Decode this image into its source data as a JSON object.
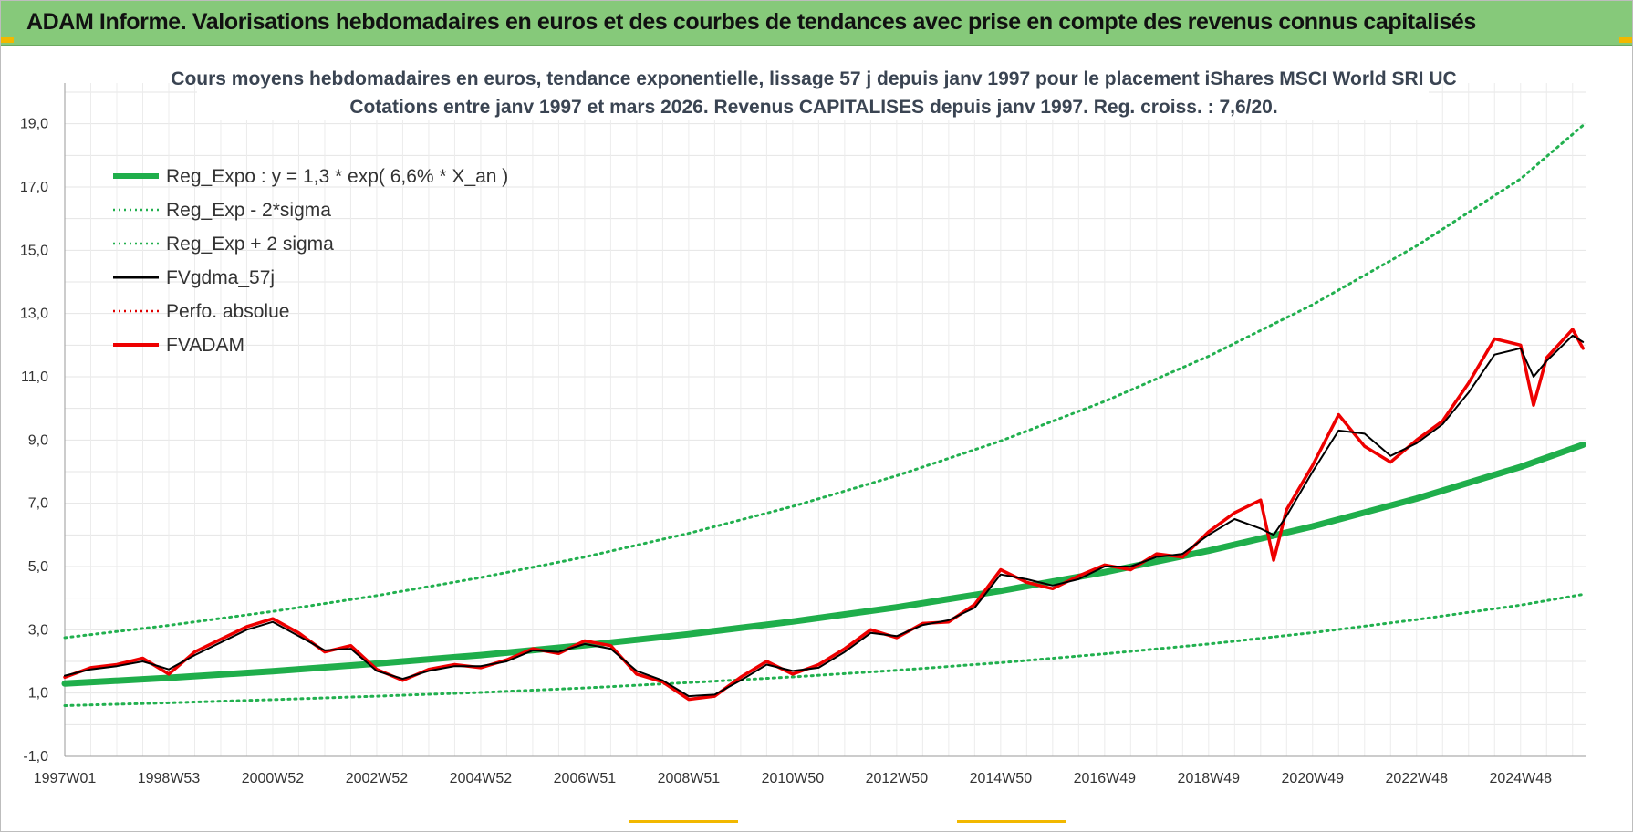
{
  "header": {
    "title": "ADAM Informe. Valorisations hebdomadaires en euros et des courbes de tendances avec prise en compte des revenus connus capitalisés"
  },
  "colors": {
    "banner": "#86c97a",
    "reg_expo": "#1fae4b",
    "sigma_lines": "#22b04f",
    "fvgdma": "#000000",
    "perfo": "#e00000",
    "fvadam": "#ee0000"
  },
  "chart_data": {
    "type": "line",
    "title": "Cours moyens hebdomadaires en euros, tendance exponentielle, lissage 57 j depuis janv 1997 pour le placement iShares MSCI World SRI UC",
    "subtitle": "Cotations entre janv 1997 et mars 2026. Revenus CAPITALISES depuis janv 1997. Reg. croiss. : 7,6/20.",
    "xlabel": "",
    "ylabel": "",
    "x_range": [
      1997.0,
      2026.25
    ],
    "ylim": [
      -1,
      20
    ],
    "y_ticks": [
      "-1,0",
      "1,0",
      "3,0",
      "5,0",
      "7,0",
      "9,0",
      "11,0",
      "13,0",
      "15,0",
      "17,0",
      "19,0"
    ],
    "y_tick_values": [
      -1,
      1,
      3,
      5,
      7,
      9,
      11,
      13,
      15,
      17,
      19
    ],
    "x_ticks": [
      {
        "label": "1997W01",
        "x": 1997.0
      },
      {
        "label": "1998W53",
        "x": 1999.0
      },
      {
        "label": "2000W52",
        "x": 2001.0
      },
      {
        "label": "2002W52",
        "x": 2003.0
      },
      {
        "label": "2004W52",
        "x": 2005.0
      },
      {
        "label": "2006W51",
        "x": 2007.0
      },
      {
        "label": "2008W51",
        "x": 2009.0
      },
      {
        "label": "2010W50",
        "x": 2011.0
      },
      {
        "label": "2012W50",
        "x": 2013.0
      },
      {
        "label": "2014W50",
        "x": 2015.0
      },
      {
        "label": "2016W49",
        "x": 2017.0
      },
      {
        "label": "2018W49",
        "x": 2019.0
      },
      {
        "label": "2020W49",
        "x": 2021.0
      },
      {
        "label": "2022W48",
        "x": 2023.0
      },
      {
        "label": "2024W48",
        "x": 2025.0
      }
    ],
    "grid": true,
    "legend_position": "top-left",
    "series": [
      {
        "name": "Reg_Expo : y = 1,3 * exp( 6,6% *  X_an )",
        "style": "solid-thick",
        "color": "#1fae4b",
        "x": [
          1997.0,
          1999.0,
          2001.0,
          2003.0,
          2005.0,
          2007.0,
          2009.0,
          2011.0,
          2013.0,
          2015.0,
          2017.0,
          2019.0,
          2021.0,
          2023.0,
          2025.0,
          2026.2
        ],
        "y": [
          1.3,
          1.48,
          1.69,
          1.93,
          2.2,
          2.51,
          2.86,
          3.26,
          3.71,
          4.23,
          4.82,
          5.5,
          6.27,
          7.15,
          8.15,
          8.85
        ]
      },
      {
        "name": "Reg_Exp - 2*sigma",
        "style": "dotted",
        "color": "#22b04f",
        "x": [
          1997.0,
          1999.0,
          2001.0,
          2003.0,
          2005.0,
          2007.0,
          2009.0,
          2011.0,
          2013.0,
          2015.0,
          2017.0,
          2019.0,
          2021.0,
          2023.0,
          2025.0,
          2026.2
        ],
        "y": [
          0.6,
          0.69,
          0.79,
          0.9,
          1.02,
          1.16,
          1.33,
          1.51,
          1.72,
          1.96,
          2.24,
          2.55,
          2.91,
          3.32,
          3.78,
          4.12
        ]
      },
      {
        "name": "Reg_Exp + 2 sigma",
        "style": "dotted",
        "color": "#22b04f",
        "x": [
          1997.0,
          1999.0,
          2001.0,
          2003.0,
          2005.0,
          2007.0,
          2009.0,
          2011.0,
          2013.0,
          2015.0,
          2017.0,
          2019.0,
          2021.0,
          2023.0,
          2025.0,
          2026.2
        ],
        "y": [
          2.75,
          3.14,
          3.58,
          4.08,
          4.65,
          5.3,
          6.05,
          6.9,
          7.87,
          8.97,
          10.22,
          11.65,
          13.28,
          15.14,
          17.26,
          18.95
        ]
      },
      {
        "name": "FVgdma_57j",
        "style": "solid-thin",
        "color": "#000000",
        "x": [
          1997.0,
          1997.5,
          1998.0,
          1998.5,
          1999.0,
          1999.5,
          2000.0,
          2000.5,
          2001.0,
          2001.5,
          2002.0,
          2002.5,
          2003.0,
          2003.5,
          2004.0,
          2004.5,
          2005.0,
          2005.5,
          2006.0,
          2006.5,
          2007.0,
          2007.5,
          2008.0,
          2008.5,
          2009.0,
          2009.5,
          2010.0,
          2010.5,
          2011.0,
          2011.5,
          2012.0,
          2012.5,
          2013.0,
          2013.5,
          2014.0,
          2014.5,
          2015.0,
          2015.5,
          2016.0,
          2016.5,
          2017.0,
          2017.5,
          2018.0,
          2018.5,
          2019.0,
          2019.5,
          2020.0,
          2020.25,
          2020.5,
          2021.0,
          2021.5,
          2022.0,
          2022.5,
          2023.0,
          2023.5,
          2024.0,
          2024.5,
          2025.0,
          2025.25,
          2025.5,
          2026.0,
          2026.2
        ],
        "y": [
          1.55,
          1.75,
          1.85,
          2.0,
          1.75,
          2.2,
          2.6,
          3.0,
          3.25,
          2.8,
          2.35,
          2.4,
          1.7,
          1.45,
          1.7,
          1.85,
          1.85,
          2.0,
          2.35,
          2.3,
          2.55,
          2.4,
          1.7,
          1.4,
          0.9,
          0.95,
          1.4,
          1.9,
          1.7,
          1.8,
          2.3,
          2.9,
          2.8,
          3.15,
          3.3,
          3.7,
          4.75,
          4.6,
          4.4,
          4.6,
          5.0,
          5.0,
          5.3,
          5.4,
          6.0,
          6.5,
          6.2,
          6.0,
          6.6,
          8.0,
          9.3,
          9.2,
          8.5,
          8.9,
          9.5,
          10.5,
          11.7,
          11.9,
          11.0,
          11.5,
          12.3,
          12.1
        ]
      },
      {
        "name": "Perfo. absolue",
        "style": "dotted",
        "color": "#e00000",
        "x": [],
        "y": []
      },
      {
        "name": "FVADAM",
        "style": "solid-thick",
        "color": "#ee0000",
        "x": [
          1997.0,
          1997.5,
          1998.0,
          1998.5,
          1999.0,
          1999.5,
          2000.0,
          2000.5,
          2001.0,
          2001.5,
          2002.0,
          2002.5,
          2003.0,
          2003.5,
          2004.0,
          2004.5,
          2005.0,
          2005.5,
          2006.0,
          2006.5,
          2007.0,
          2007.5,
          2008.0,
          2008.5,
          2009.0,
          2009.5,
          2010.0,
          2010.5,
          2011.0,
          2011.5,
          2012.0,
          2012.5,
          2013.0,
          2013.5,
          2014.0,
          2014.5,
          2015.0,
          2015.5,
          2016.0,
          2016.5,
          2017.0,
          2017.5,
          2018.0,
          2018.5,
          2019.0,
          2019.5,
          2020.0,
          2020.25,
          2020.5,
          2021.0,
          2021.5,
          2022.0,
          2022.5,
          2023.0,
          2023.5,
          2024.0,
          2024.5,
          2025.0,
          2025.25,
          2025.5,
          2026.0,
          2026.2
        ],
        "y": [
          1.5,
          1.8,
          1.9,
          2.1,
          1.6,
          2.3,
          2.7,
          3.1,
          3.35,
          2.9,
          2.3,
          2.5,
          1.75,
          1.4,
          1.75,
          1.9,
          1.8,
          2.05,
          2.4,
          2.25,
          2.65,
          2.5,
          1.6,
          1.35,
          0.8,
          0.9,
          1.5,
          2.0,
          1.6,
          1.9,
          2.4,
          3.0,
          2.75,
          3.2,
          3.25,
          3.8,
          4.9,
          4.5,
          4.3,
          4.7,
          5.05,
          4.9,
          5.4,
          5.3,
          6.1,
          6.7,
          7.1,
          5.2,
          6.8,
          8.2,
          9.8,
          8.8,
          8.3,
          9.0,
          9.6,
          10.8,
          12.2,
          12.0,
          10.1,
          11.6,
          12.5,
          11.9
        ]
      }
    ]
  }
}
